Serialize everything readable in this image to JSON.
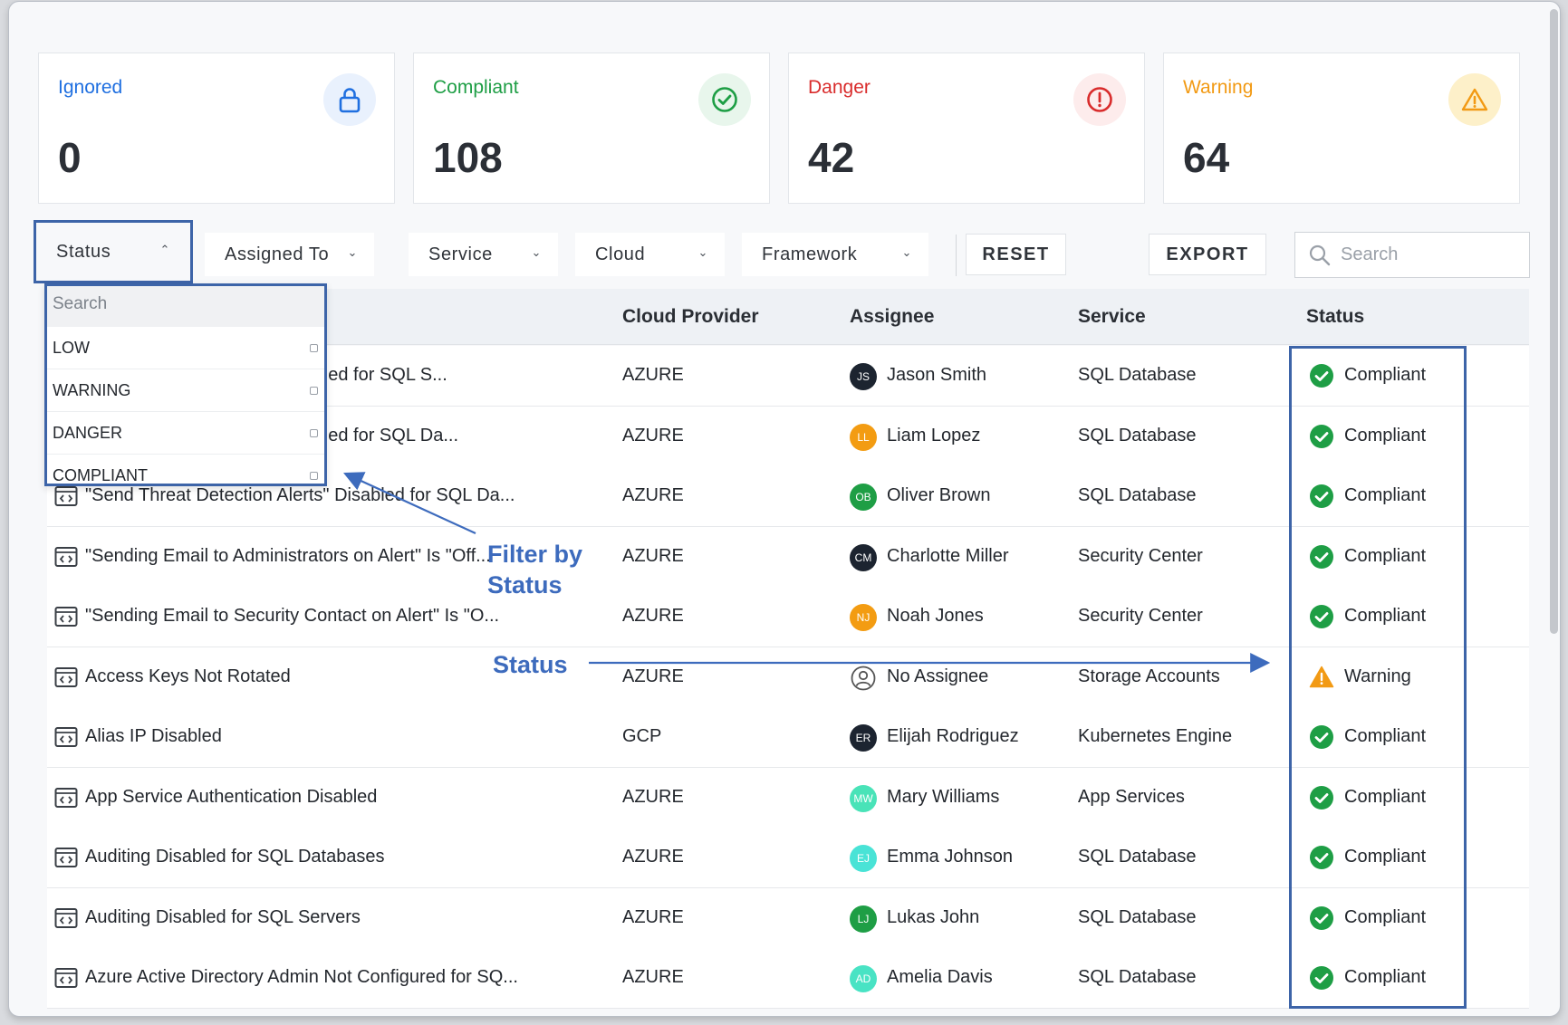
{
  "cards": [
    {
      "title": "Ignored",
      "value": "0",
      "color": "#1f6fe0",
      "bg": "#e9f1fd",
      "icon": "lock-icon"
    },
    {
      "title": "Compliant",
      "value": "108",
      "color": "#1e9e45",
      "bg": "#e8f6ec",
      "icon": "check-circle-icon"
    },
    {
      "title": "Danger",
      "value": "42",
      "color": "#d92c2c",
      "bg": "#fdecec",
      "icon": "alert-circle-icon"
    },
    {
      "title": "Warning",
      "value": "64",
      "color": "#f29a14",
      "bg": "#fdf0c9",
      "icon": "warning-triangle-icon"
    }
  ],
  "filters": {
    "status": "Status",
    "assigned_to": "Assigned To",
    "service": "Service",
    "cloud": "Cloud",
    "framework": "Framework",
    "reset": "RESET",
    "export": "EXPORT",
    "search_placeholder": "Search"
  },
  "dropdown": {
    "search_placeholder": "Search",
    "options": [
      "LOW",
      "WARNING",
      "DANGER",
      "COMPLIANT"
    ]
  },
  "table": {
    "headers": {
      "cloud": "Cloud Provider",
      "assignee": "Assignee",
      "service": "Service",
      "status": "Status"
    },
    "rows": [
      {
        "rule": "\" Disabled for SQL S...",
        "cloud": "AZURE",
        "initials": "JS",
        "avatar_color": "#1c2430",
        "assignee": "Jason Smith",
        "service": "SQL Database",
        "status": "Compliant"
      },
      {
        "rule": "\" Disabled for SQL Da...",
        "cloud": "AZURE",
        "initials": "LL",
        "avatar_color": "#f39c12",
        "assignee": "Liam Lopez",
        "service": "SQL Database",
        "status": "Compliant"
      },
      {
        "rule": "\"Send Threat Detection Alerts\" Disabled for SQL Da...",
        "cloud": "AZURE",
        "initials": "OB",
        "avatar_color": "#1e9e45",
        "assignee": "Oliver Brown",
        "service": "SQL Database",
        "status": "Compliant"
      },
      {
        "rule": "\"Sending Email to Administrators on Alert\" Is \"Off...",
        "cloud": "AZURE",
        "initials": "CM",
        "avatar_color": "#1c2430",
        "assignee": "Charlotte Miller",
        "service": "Security Center",
        "status": "Compliant"
      },
      {
        "rule": "\"Sending Email to Security Contact on Alert\" Is \"O...",
        "cloud": "AZURE",
        "initials": "NJ",
        "avatar_color": "#f39c12",
        "assignee": "Noah Jones",
        "service": "Security Center",
        "status": "Compliant"
      },
      {
        "rule": "Access Keys Not Rotated",
        "cloud": "AZURE",
        "initials": "",
        "avatar_color": "",
        "assignee": "No Assignee",
        "service": "Storage Accounts",
        "status": "Warning"
      },
      {
        "rule": "Alias IP Disabled",
        "cloud": "GCP",
        "initials": "ER",
        "avatar_color": "#1c2430",
        "assignee": "Elijah Rodriguez",
        "service": "Kubernetes Engine",
        "status": "Compliant"
      },
      {
        "rule": "App Service Authentication Disabled",
        "cloud": "AZURE",
        "initials": "MW",
        "avatar_color": "#49e3b8",
        "assignee": "Mary Williams",
        "service": "App Services",
        "status": "Compliant"
      },
      {
        "rule": "Auditing Disabled for SQL Databases",
        "cloud": "AZURE",
        "initials": "EJ",
        "avatar_color": "#49e3d6",
        "assignee": "Emma Johnson",
        "service": "SQL Database",
        "status": "Compliant"
      },
      {
        "rule": "Auditing Disabled for SQL Servers",
        "cloud": "AZURE",
        "initials": "LJ",
        "avatar_color": "#1e9e45",
        "assignee": "Lukas John",
        "service": "SQL Database",
        "status": "Compliant"
      },
      {
        "rule": "Azure Active Directory Admin Not Configured for SQ...",
        "cloud": "AZURE",
        "initials": "AD",
        "avatar_color": "#49e3c4",
        "assignee": "Amelia Davis",
        "service": "SQL Database",
        "status": "Compliant"
      }
    ]
  },
  "annotations": {
    "filter_by_status": [
      "Filter by",
      "Status"
    ],
    "status": "Status",
    "color": "#3d6bbd"
  }
}
